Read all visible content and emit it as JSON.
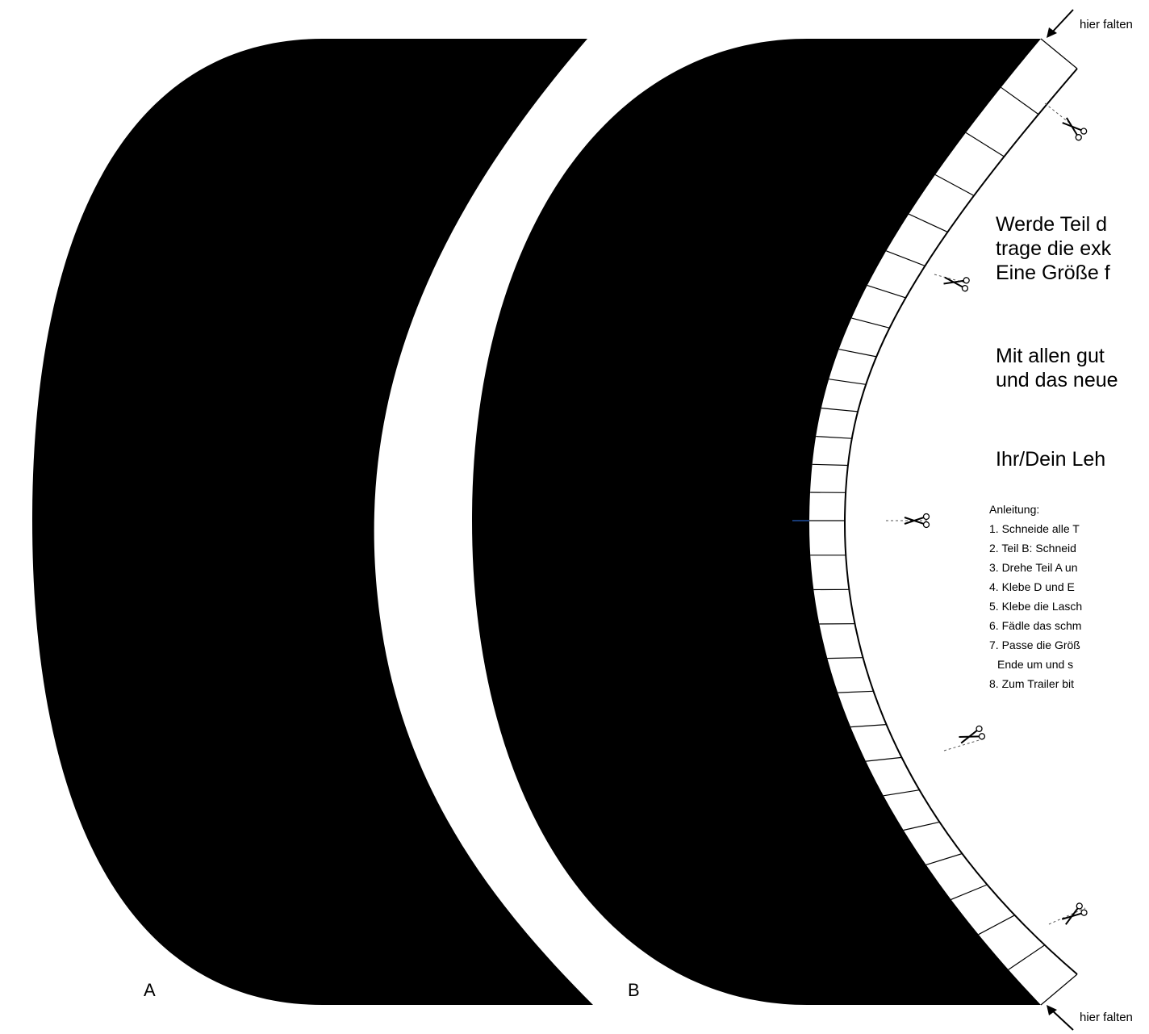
{
  "colors": {
    "shape_fill": "#000000",
    "background": "#ffffff",
    "tab_stroke": "#000000",
    "center_tick": "#1f4e9e"
  },
  "icons": [
    "scissors-icon",
    "arrow-icon"
  ],
  "fold_label_top": "hier falten",
  "fold_label_bottom": "hier falten",
  "part_a_label": "A",
  "part_b_label": "B",
  "message": {
    "line1": "Werde Teil d",
    "line2": "trage die exk",
    "line3": "Eine Größe f",
    "line4": "Mit allen gut",
    "line5": "und das neue",
    "signature": "Ihr/Dein Leh"
  },
  "instructions": {
    "heading": "Anleitung:",
    "steps": [
      "1. Schneide alle T",
      "2. Teil B: Schneid",
      "3. Drehe Teil A un",
      "4. Klebe D und E",
      "5. Klebe die Lasch",
      "6. Fädle das schm",
      "7. Passe die Größ",
      "Ende um und s",
      "8. Zum Trailer bit"
    ]
  }
}
